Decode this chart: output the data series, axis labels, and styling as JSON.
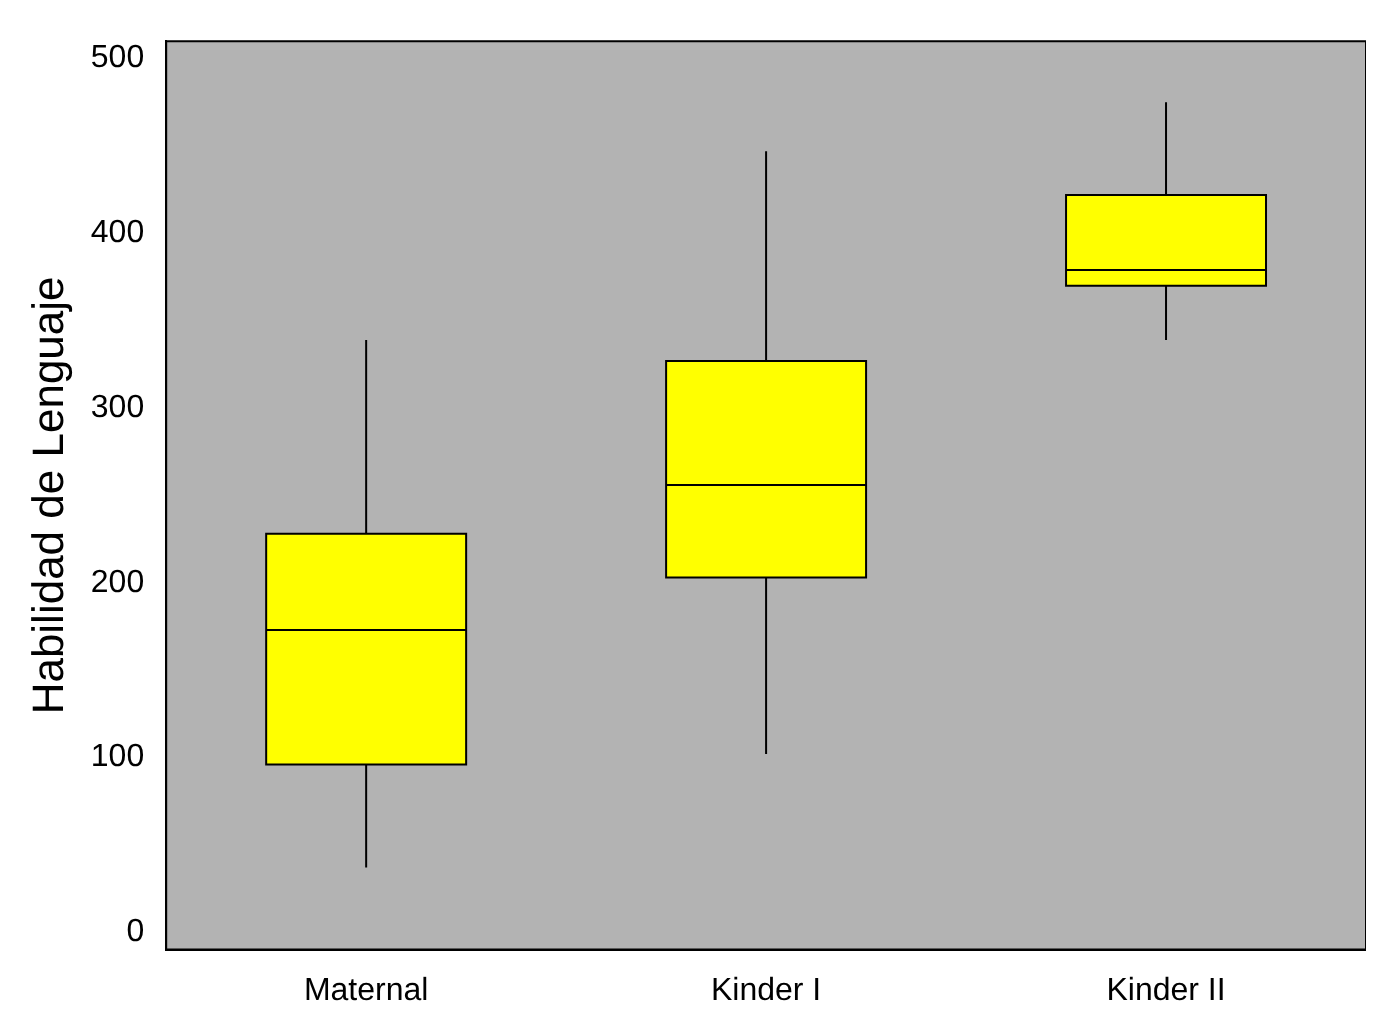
{
  "chart_data": {
    "type": "box",
    "ylabel": "Habilidad de Lenguaje",
    "categories": [
      "Maternal",
      "Kinder I",
      "Kinder II"
    ],
    "ylim": [
      -10,
      510
    ],
    "yticks": [
      0,
      100,
      200,
      300,
      400,
      500
    ],
    "series": [
      {
        "color": "#ffff00",
        "boxes": [
          {
            "low": 37,
            "q1": 96,
            "median": 173,
            "q3": 228,
            "high": 339
          },
          {
            "low": 102,
            "q1": 203,
            "median": 256,
            "q3": 327,
            "high": 447
          },
          {
            "low": 339,
            "q1": 370,
            "median": 379,
            "q3": 422,
            "high": 475
          }
        ]
      }
    ]
  }
}
